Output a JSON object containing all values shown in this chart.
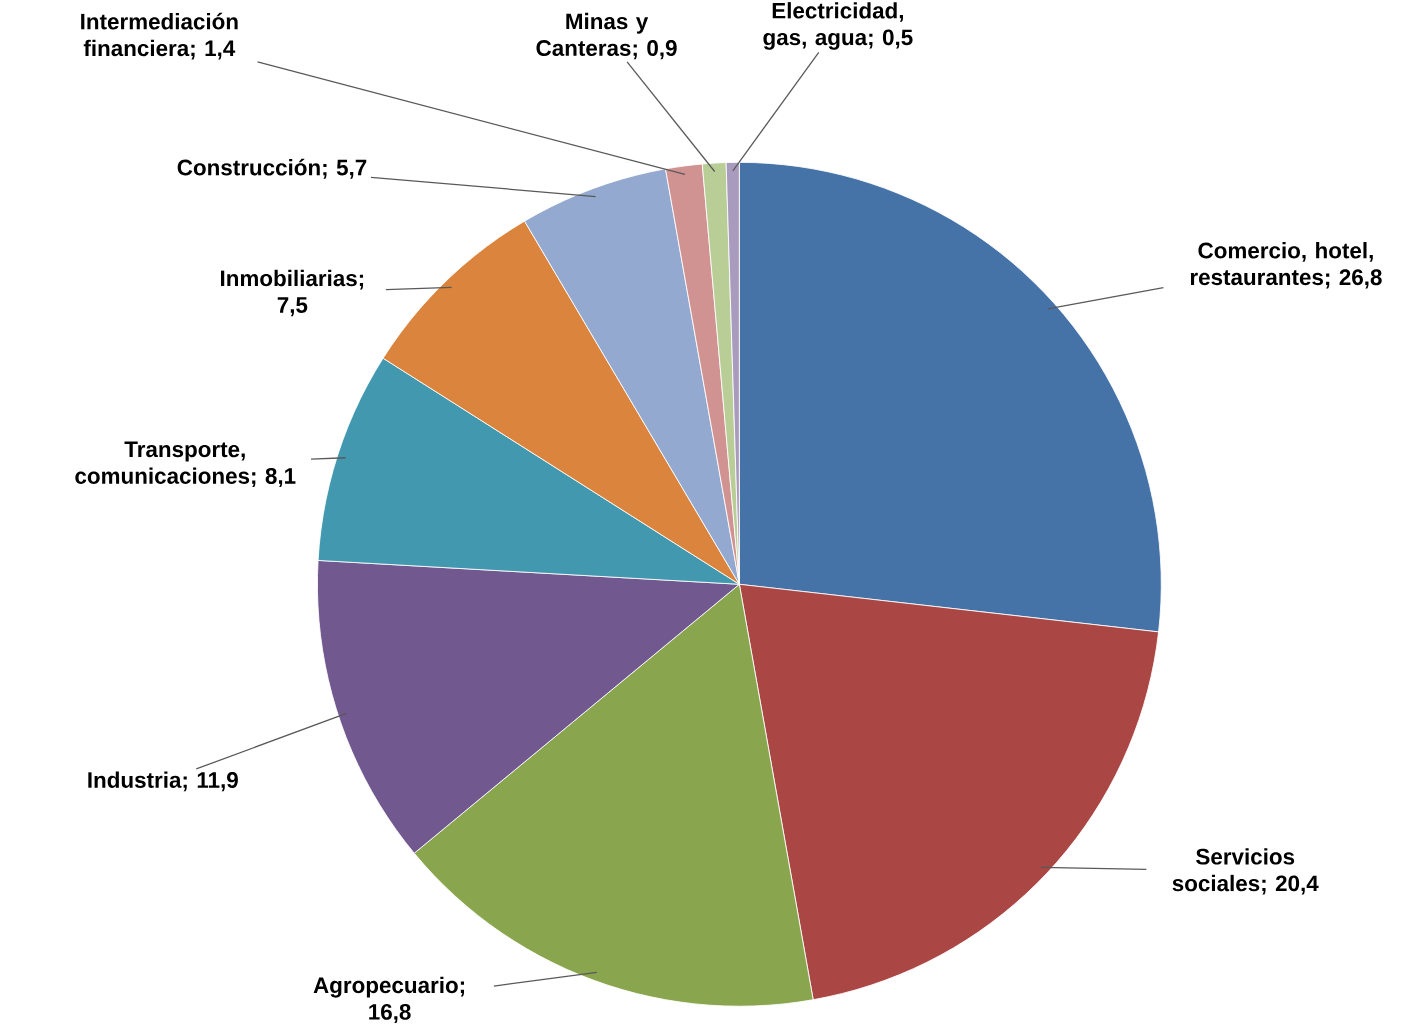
{
  "chart_data": {
    "type": "pie",
    "categories": [
      "Comercio, hotel, restaurantes",
      "Servicios sociales",
      "Agropecuario",
      "Industria",
      "Transporte, comunicaciones",
      "Inmobiliarias",
      "Construcción",
      "Intermediación financiera",
      "Minas y Canteras",
      "Electricidad, gas, agua"
    ],
    "values": [
      26.8,
      20.4,
      16.8,
      11.9,
      8.1,
      7.5,
      5.7,
      1.4,
      0.9,
      0.5
    ],
    "value_labels": [
      "; 26,8",
      "; 20,4",
      "; 16,8",
      "; 11,9",
      "; 8,1",
      "; 7,5",
      "; 5,7",
      "; 1,4",
      "; 0,9",
      "; 0,5"
    ],
    "colors": [
      "#4572a7",
      "#aa4643",
      "#89a54e",
      "#71588f",
      "#4198af",
      "#db843d",
      "#93a9cf",
      "#d19392",
      "#b9cd96",
      "#a99bbd"
    ]
  }
}
